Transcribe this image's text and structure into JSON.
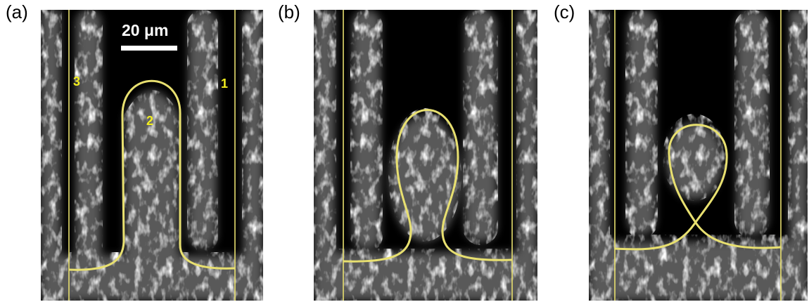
{
  "panels": [
    {
      "label": "(a)"
    },
    {
      "label": "(b)"
    },
    {
      "label": "(c)"
    }
  ],
  "scale_bar": {
    "text": "20 μm"
  },
  "stripe_labels": [
    "3",
    "2",
    "1"
  ],
  "colors": {
    "overlay": "#e8e070",
    "label": "#f2ee1f",
    "background": "#000000",
    "texture": "#ffffff"
  }
}
